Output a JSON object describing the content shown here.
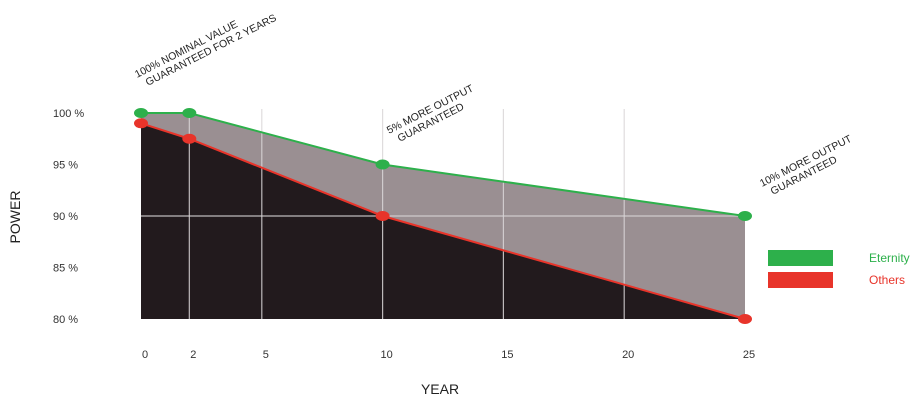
{
  "chart_data": {
    "type": "area",
    "xlabel": "YEAR",
    "ylabel": "POWER",
    "x_ticks": [
      "0",
      "2",
      "5",
      "10",
      "15",
      "20",
      "25"
    ],
    "y_ticks": [
      "100 %",
      "95 %",
      "90 %",
      "85 %",
      "80 %"
    ],
    "xlim": [
      0,
      25
    ],
    "ylim": [
      80,
      100
    ],
    "series": [
      {
        "name": "Eternity",
        "color": "#2db04b",
        "x": [
          0,
          2,
          10,
          25
        ],
        "y": [
          100,
          100,
          95,
          90
        ]
      },
      {
        "name": "Others",
        "color": "#e8342a",
        "x": [
          0,
          2,
          10,
          25
        ],
        "y": [
          99,
          97.5,
          90,
          80
        ]
      }
    ],
    "fills": {
      "gap_color": "#9a8f92",
      "below_color": "#221a1d"
    },
    "annotations": [
      {
        "lines": [
          "100% NOMINAL VALUE",
          "GUARANTEED FOR 2 YEARS"
        ],
        "x": 0
      },
      {
        "lines": [
          "5% MORE OUTPUT",
          "GUARANTEED"
        ],
        "x": 10
      },
      {
        "lines": [
          "10% MORE OUTPUT",
          "GUARANTEED"
        ],
        "x": 25
      }
    ],
    "grid": true,
    "legend_position": "right"
  }
}
